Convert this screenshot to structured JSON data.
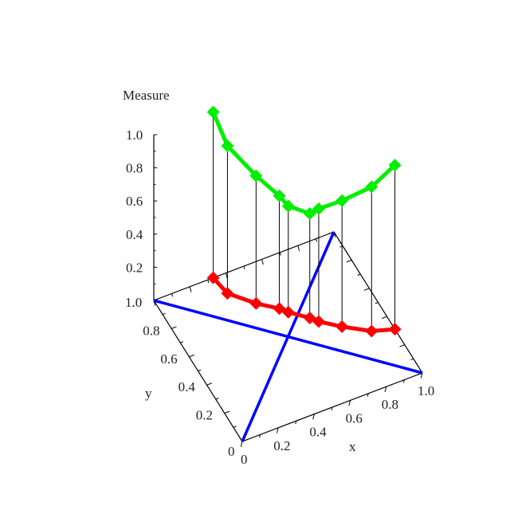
{
  "chart_data": {
    "type": "scatter3d",
    "zlabel": "Measure",
    "xlabel": "x",
    "ylabel": "y",
    "xlim": [
      0,
      1
    ],
    "ylim": [
      0,
      1
    ],
    "zlim": [
      0,
      1
    ],
    "x_ticks": [
      "0",
      "0.2",
      "0.4",
      "0.6",
      "0.8",
      "1.0"
    ],
    "y_ticks": [
      "0",
      "0.2",
      "0.4",
      "0.6",
      "0.8",
      "1.0"
    ],
    "z_ticks": [
      "0.2",
      "0.4",
      "0.6",
      "0.8",
      "1.0"
    ],
    "grid": false,
    "colors": {
      "measure": "#00ee00",
      "base": "#ff0000",
      "diagonals": "#0000ff",
      "axes": "#000000"
    },
    "diagonals": [
      {
        "from": [
          0,
          0
        ],
        "to": [
          1,
          1
        ]
      },
      {
        "from": [
          0,
          1
        ],
        "to": [
          1,
          0
        ]
      }
    ],
    "points": [
      {
        "x": 0.33,
        "y": 1.0,
        "measure": 1.0
      },
      {
        "x": 0.35,
        "y": 0.88,
        "measure": 0.89
      },
      {
        "x": 0.45,
        "y": 0.76,
        "measure": 0.77
      },
      {
        "x": 0.54,
        "y": 0.68,
        "measure": 0.68
      },
      {
        "x": 0.57,
        "y": 0.64,
        "measure": 0.64
      },
      {
        "x": 0.65,
        "y": 0.56,
        "measure": 0.63
      },
      {
        "x": 0.68,
        "y": 0.52,
        "measure": 0.68
      },
      {
        "x": 0.77,
        "y": 0.44,
        "measure": 0.76
      },
      {
        "x": 0.89,
        "y": 0.35,
        "measure": 0.87
      },
      {
        "x": 1.0,
        "y": 0.31,
        "measure": 0.99
      }
    ]
  }
}
